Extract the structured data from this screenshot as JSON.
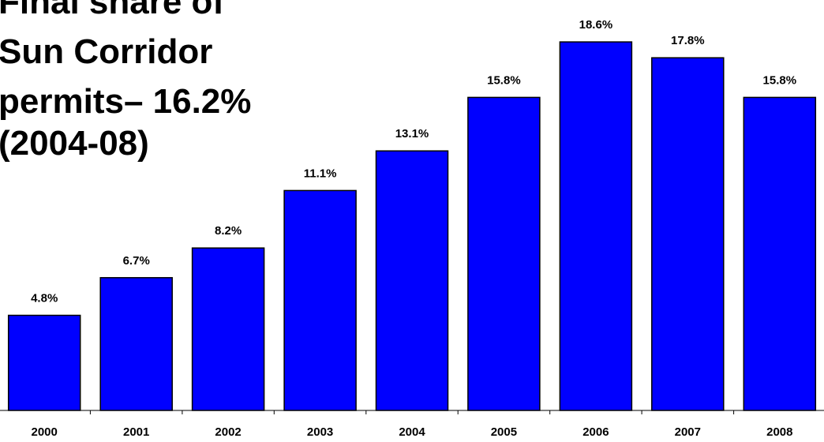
{
  "chart_data": {
    "type": "bar",
    "title_lines": [
      "Final share of",
      "Sun Corridor",
      "permits– 16.2%",
      "(2004-08)"
    ],
    "categories": [
      "2000",
      "2001",
      "2002",
      "2003",
      "2004",
      "2005",
      "2006",
      "2007",
      "2008"
    ],
    "values": [
      4.8,
      6.7,
      8.2,
      11.1,
      13.1,
      15.8,
      18.6,
      17.8,
      15.8
    ],
    "value_labels": [
      "4.8%",
      "6.7%",
      "8.2%",
      "11.1%",
      "13.1%",
      "15.8%",
      "18.6%",
      "17.8%",
      "15.8%"
    ],
    "xlabel": "",
    "ylabel": "",
    "ylim": [
      0,
      20
    ],
    "grid": false,
    "bar_color": "#0000ff",
    "bar_outline_color": "#000000"
  }
}
